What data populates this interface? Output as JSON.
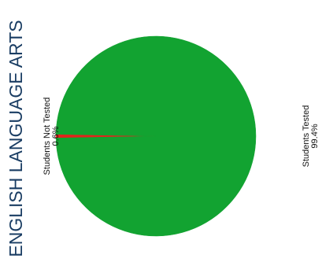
{
  "chart_data": {
    "type": "pie",
    "title": "ENGLISH LANGUAGE ARTS",
    "slices": [
      {
        "label": "Students Tested",
        "value": 99.4,
        "value_label": "99.4%",
        "color": "#12a331"
      },
      {
        "label": "Students Not Tested",
        "value": 0.6,
        "value_label": "0.6%",
        "color": "#e3231c"
      }
    ]
  }
}
